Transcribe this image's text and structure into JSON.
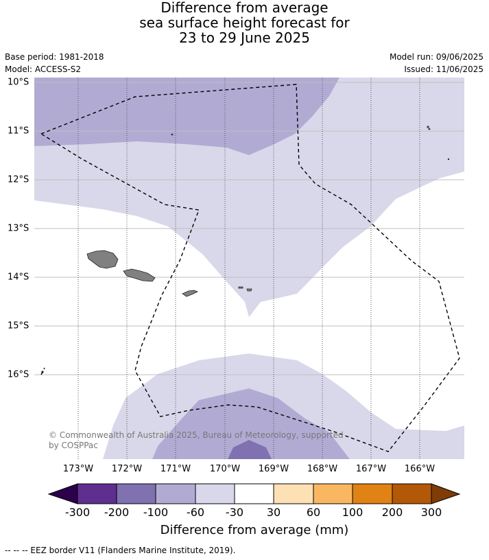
{
  "title": {
    "line1": "Difference from average",
    "line2": "sea surface height forecast for",
    "line3": "23 to 29 June 2025"
  },
  "meta": {
    "base_period": "Base period: 1981-2018",
    "model": "Model: ACCESS-S2",
    "model_run": "Model run: 09/06/2025",
    "issued": "Issued: 11/06/2025"
  },
  "map": {
    "lat_labels": [
      "10°S",
      "11°S",
      "12°S",
      "13°S",
      "14°S",
      "15°S",
      "16°S"
    ],
    "lon_labels": [
      "173°W",
      "172°W",
      "171°W",
      "170°W",
      "169°W",
      "168°W",
      "167°W",
      "166°W"
    ],
    "credit_line1": "© Commonwealth of Australia 2025, Bureau of Meteorology, supported",
    "credit_line2": "by COSPPac",
    "land_color": "#808080",
    "eez_line": "dashed black"
  },
  "colorbar": {
    "ticks": [
      "-300",
      "-200",
      "-100",
      "-60",
      "-30",
      "30",
      "60",
      "100",
      "200",
      "300"
    ],
    "colors": [
      "#2d004b",
      "#5e2f8f",
      "#8072b0",
      "#b1abd4",
      "#d9d8ea",
      "#ffffff",
      "#fde1b5",
      "#f9b762",
      "#e08214",
      "#b35806",
      "#7f3b08"
    ],
    "label": "Difference from average (mm)"
  },
  "footer": {
    "legend": "--  --  -- EEZ border V11 (Flanders Marine Institute, 2019)."
  }
}
